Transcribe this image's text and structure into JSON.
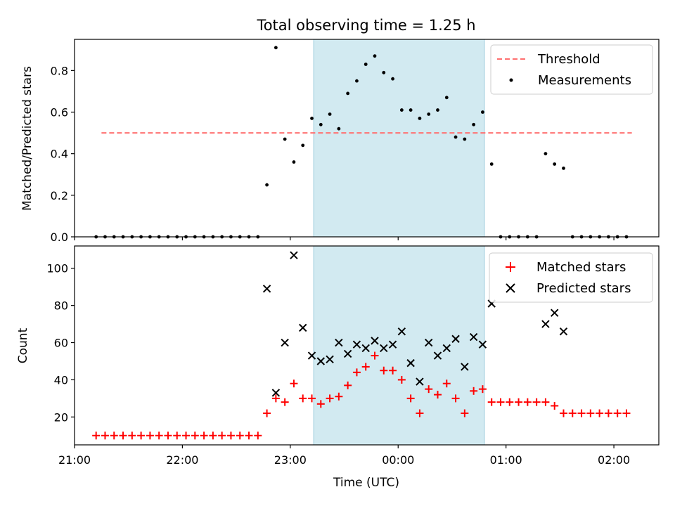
{
  "chart_data": [
    {
      "type": "scatter",
      "title": "Total observing time = 1.25 h",
      "ylabel": "Matched/Predicted stars",
      "xlabel": "",
      "x_axis": "time (UTC)",
      "xlim": [
        "21:00",
        "02:25"
      ],
      "ylim": [
        0,
        0.95
      ],
      "yticks": [
        "0.0",
        "0.2",
        "0.4",
        "0.6",
        "0.8"
      ],
      "shaded_interval": [
        "23:13",
        "00:48"
      ],
      "shade_color": "#add8e6",
      "legend_position": "top-right",
      "threshold": {
        "name": "Threshold",
        "value": 0.5,
        "x_range": [
          "21:15",
          "02:10"
        ],
        "color": "#ff7070"
      },
      "series": [
        {
          "name": "Measurements",
          "color": "#000000",
          "marker": "dot",
          "points": [
            [
              "21:12",
              0
            ],
            [
              "21:17",
              0
            ],
            [
              "21:22",
              0
            ],
            [
              "21:27",
              0
            ],
            [
              "21:32",
              0
            ],
            [
              "21:37",
              0
            ],
            [
              "21:42",
              0
            ],
            [
              "21:47",
              0
            ],
            [
              "21:52",
              0
            ],
            [
              "21:57",
              0
            ],
            [
              "22:02",
              0
            ],
            [
              "22:07",
              0
            ],
            [
              "22:12",
              0
            ],
            [
              "22:17",
              0
            ],
            [
              "22:22",
              0
            ],
            [
              "22:27",
              0
            ],
            [
              "22:32",
              0
            ],
            [
              "22:37",
              0
            ],
            [
              "22:42",
              0
            ],
            [
              "22:47",
              0.25
            ],
            [
              "22:52",
              0.91
            ],
            [
              "22:57",
              0.47
            ],
            [
              "23:02",
              0.36
            ],
            [
              "23:07",
              0.44
            ],
            [
              "23:12",
              0.57
            ],
            [
              "23:17",
              0.54
            ],
            [
              "23:22",
              0.59
            ],
            [
              "23:27",
              0.52
            ],
            [
              "23:32",
              0.69
            ],
            [
              "23:37",
              0.75
            ],
            [
              "23:42",
              0.83
            ],
            [
              "23:47",
              0.87
            ],
            [
              "23:52",
              0.79
            ],
            [
              "23:57",
              0.76
            ],
            [
              "00:02",
              0.61
            ],
            [
              "00:07",
              0.61
            ],
            [
              "00:12",
              0.57
            ],
            [
              "00:17",
              0.59
            ],
            [
              "00:22",
              0.61
            ],
            [
              "00:27",
              0.67
            ],
            [
              "00:32",
              0.48
            ],
            [
              "00:37",
              0.47
            ],
            [
              "00:42",
              0.54
            ],
            [
              "00:47",
              0.6
            ],
            [
              "00:52",
              0.35
            ],
            [
              "00:57",
              0
            ],
            [
              "01:02",
              0
            ],
            [
              "01:07",
              0
            ],
            [
              "01:12",
              0
            ],
            [
              "01:17",
              0
            ],
            [
              "01:22",
              0.4
            ],
            [
              "01:27",
              0.35
            ],
            [
              "01:32",
              0.33
            ],
            [
              "01:37",
              0
            ],
            [
              "01:42",
              0
            ],
            [
              "01:47",
              0
            ],
            [
              "01:52",
              0
            ],
            [
              "01:57",
              0
            ],
            [
              "02:02",
              0
            ],
            [
              "02:07",
              0
            ]
          ]
        }
      ]
    },
    {
      "type": "scatter",
      "title": "",
      "ylabel": "Count",
      "xlabel": "Time (UTC)",
      "x_axis": "time (UTC)",
      "xlim": [
        "21:00",
        "02:25"
      ],
      "ylim": [
        5,
        112
      ],
      "xticks": [
        "21:00",
        "22:00",
        "23:00",
        "00:00",
        "01:00",
        "02:00"
      ],
      "yticks": [
        "20",
        "40",
        "60",
        "80",
        "100"
      ],
      "shaded_interval": [
        "23:13",
        "00:48"
      ],
      "shade_color": "#add8e6",
      "legend_position": "top-right",
      "series": [
        {
          "name": "Matched stars",
          "color": "#ff0000",
          "marker": "plus",
          "points": [
            [
              "21:12",
              10
            ],
            [
              "21:17",
              10
            ],
            [
              "21:22",
              10
            ],
            [
              "21:27",
              10
            ],
            [
              "21:32",
              10
            ],
            [
              "21:37",
              10
            ],
            [
              "21:42",
              10
            ],
            [
              "21:47",
              10
            ],
            [
              "21:52",
              10
            ],
            [
              "21:57",
              10
            ],
            [
              "22:02",
              10
            ],
            [
              "22:07",
              10
            ],
            [
              "22:12",
              10
            ],
            [
              "22:17",
              10
            ],
            [
              "22:22",
              10
            ],
            [
              "22:27",
              10
            ],
            [
              "22:32",
              10
            ],
            [
              "22:37",
              10
            ],
            [
              "22:42",
              10
            ],
            [
              "22:47",
              22
            ],
            [
              "22:52",
              30
            ],
            [
              "22:57",
              28
            ],
            [
              "23:02",
              38
            ],
            [
              "23:07",
              30
            ],
            [
              "23:12",
              30
            ],
            [
              "23:17",
              27
            ],
            [
              "23:22",
              30
            ],
            [
              "23:27",
              31
            ],
            [
              "23:32",
              37
            ],
            [
              "23:37",
              44
            ],
            [
              "23:42",
              47
            ],
            [
              "23:47",
              53
            ],
            [
              "23:52",
              45
            ],
            [
              "23:57",
              45
            ],
            [
              "00:02",
              40
            ],
            [
              "00:07",
              30
            ],
            [
              "00:12",
              22
            ],
            [
              "00:17",
              35
            ],
            [
              "00:22",
              32
            ],
            [
              "00:27",
              38
            ],
            [
              "00:32",
              30
            ],
            [
              "00:37",
              22
            ],
            [
              "00:42",
              34
            ],
            [
              "00:47",
              35
            ],
            [
              "00:52",
              28
            ],
            [
              "00:57",
              28
            ],
            [
              "01:02",
              28
            ],
            [
              "01:07",
              28
            ],
            [
              "01:12",
              28
            ],
            [
              "01:17",
              28
            ],
            [
              "01:22",
              28
            ],
            [
              "01:27",
              26
            ],
            [
              "01:32",
              22
            ],
            [
              "01:37",
              22
            ],
            [
              "01:42",
              22
            ],
            [
              "01:47",
              22
            ],
            [
              "01:52",
              22
            ],
            [
              "01:57",
              22
            ],
            [
              "02:02",
              22
            ],
            [
              "02:07",
              22
            ]
          ]
        },
        {
          "name": "Predicted stars",
          "color": "#000000",
          "marker": "x",
          "points": [
            [
              "22:47",
              89
            ],
            [
              "22:52",
              33
            ],
            [
              "22:57",
              60
            ],
            [
              "23:02",
              107
            ],
            [
              "23:07",
              68
            ],
            [
              "23:12",
              53
            ],
            [
              "23:17",
              50
            ],
            [
              "23:22",
              51
            ],
            [
              "23:27",
              60
            ],
            [
              "23:32",
              54
            ],
            [
              "23:37",
              59
            ],
            [
              "23:42",
              57
            ],
            [
              "23:47",
              61
            ],
            [
              "23:52",
              57
            ],
            [
              "23:57",
              59
            ],
            [
              "00:02",
              66
            ],
            [
              "00:07",
              49
            ],
            [
              "00:12",
              39
            ],
            [
              "00:17",
              60
            ],
            [
              "00:22",
              53
            ],
            [
              "00:27",
              57
            ],
            [
              "00:32",
              62
            ],
            [
              "00:37",
              47
            ],
            [
              "00:42",
              63
            ],
            [
              "00:47",
              59
            ],
            [
              "00:52",
              81
            ],
            [
              "01:22",
              70
            ],
            [
              "01:27",
              76
            ],
            [
              "01:32",
              66
            ]
          ]
        }
      ]
    }
  ]
}
